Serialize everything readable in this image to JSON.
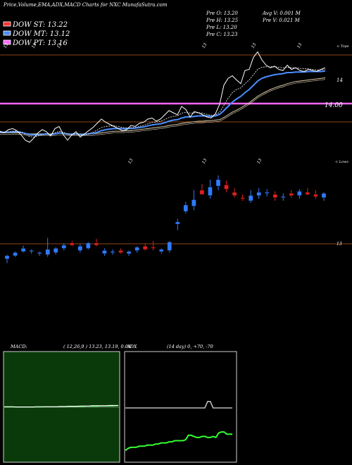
{
  "header": {
    "title": "Price,Volume,EMA,ADX,MACD Charts for NXC MunafaSutra.com",
    "dow_st": "DOW ST: 13.22",
    "dow_mt": "DOW MT: 13.12",
    "dow_pt": "DOW PT: 13.16",
    "prev_o": "Pre   O: 13.20",
    "prev_h": "Pre   H: 13.25",
    "prev_l": "Pre   L: 13.20",
    "prev_c": "Pre   C: 13.23",
    "avg_v": "Avg V: 0.001 M",
    "pre_v": "Pre   V: 0.021 M"
  },
  "colors": {
    "st": "#ff3333",
    "mt": "#4a8dff",
    "pt": "#ff66ff",
    "up": "#2f7bff",
    "down": "#e02020",
    "grid": "#8b4513",
    "macd_bg": "#0a3a0a",
    "adx_line": "#33ff33"
  },
  "chart_data": [
    {
      "type": "line",
      "name": "price-ema",
      "corner_label": "< Tops",
      "labels": {
        "level_14": "14",
        "level_1400": "14.00"
      },
      "top_tick_labels": [
        "13",
        "13",
        "13",
        "13",
        "13",
        "13"
      ],
      "ylim": [
        12.6,
        14.6
      ],
      "close": [
        13.05,
        13.02,
        13.08,
        13.1,
        13.06,
        12.98,
        12.88,
        12.84,
        12.92,
        13.02,
        13.08,
        13.04,
        12.96,
        13.1,
        13.14,
        12.98,
        12.88,
        12.98,
        13.04,
        12.94,
        13.0,
        13.06,
        13.12,
        13.2,
        13.28,
        13.22,
        13.18,
        13.14,
        13.1,
        13.06,
        13.08,
        13.16,
        13.14,
        13.2,
        13.22,
        13.28,
        13.3,
        13.24,
        13.28,
        13.36,
        13.44,
        13.4,
        13.36,
        13.52,
        13.46,
        13.32,
        13.42,
        13.4,
        13.36,
        13.32,
        13.3,
        13.38,
        13.56,
        13.92,
        14.05,
        14.1,
        14.02,
        13.95,
        14.2,
        14.22,
        14.45,
        14.55,
        14.4,
        14.3,
        14.25,
        14.28,
        14.22,
        14.2,
        14.3,
        14.22,
        14.25,
        14.2,
        14.18,
        14.22,
        14.2,
        14.18,
        14.22,
        14.25
      ],
      "ema_short": [
        13.04,
        13.03,
        13.04,
        13.05,
        13.05,
        13.03,
        12.99,
        12.95,
        12.94,
        12.96,
        12.99,
        13.0,
        12.99,
        13.02,
        13.05,
        13.03,
        12.99,
        12.99,
        13.0,
        12.98,
        12.98,
        13.0,
        13.03,
        13.07,
        13.12,
        13.14,
        13.15,
        13.15,
        13.14,
        13.12,
        13.11,
        13.12,
        13.12,
        13.14,
        13.16,
        13.19,
        13.22,
        13.22,
        13.24,
        13.27,
        13.31,
        13.33,
        13.34,
        13.39,
        13.41,
        13.39,
        13.4,
        13.4,
        13.39,
        13.37,
        13.35,
        13.36,
        13.41,
        13.54,
        13.67,
        13.78,
        13.84,
        13.87,
        13.95,
        14.02,
        14.12,
        14.22,
        14.26,
        14.27,
        14.27,
        14.27,
        14.26,
        14.25,
        14.26,
        14.25,
        14.25,
        14.24,
        14.23,
        14.23,
        14.22,
        14.21,
        14.21,
        14.22
      ],
      "ema_mid": [
        13.03,
        13.03,
        13.03,
        13.04,
        13.04,
        13.03,
        13.01,
        12.99,
        12.98,
        12.98,
        12.99,
        13.0,
        12.99,
        13.0,
        13.02,
        13.01,
        13.0,
        12.99,
        13.0,
        12.99,
        12.99,
        13.0,
        13.01,
        13.03,
        13.06,
        13.08,
        13.09,
        13.1,
        13.1,
        13.1,
        13.1,
        13.1,
        13.11,
        13.12,
        13.13,
        13.15,
        13.17,
        13.18,
        13.19,
        13.21,
        13.24,
        13.26,
        13.27,
        13.3,
        13.32,
        13.32,
        13.33,
        13.34,
        13.34,
        13.34,
        13.33,
        13.34,
        13.37,
        13.44,
        13.52,
        13.6,
        13.66,
        13.71,
        13.78,
        13.84,
        13.92,
        14.0,
        14.05,
        14.08,
        14.1,
        14.12,
        14.13,
        14.14,
        14.16,
        14.16,
        14.17,
        14.17,
        14.17,
        14.18,
        14.18,
        14.18,
        14.18,
        14.19
      ],
      "ema_long": [
        13.02,
        13.02,
        13.02,
        13.02,
        13.02,
        13.02,
        13.01,
        13.0,
        13.0,
        13.0,
        13.0,
        13.0,
        13.0,
        13.0,
        13.01,
        13.01,
        13.0,
        13.0,
        13.0,
        13.0,
        13.0,
        13.0,
        13.0,
        13.01,
        13.02,
        13.03,
        13.04,
        13.05,
        13.05,
        13.05,
        13.06,
        13.06,
        13.07,
        13.08,
        13.09,
        13.1,
        13.11,
        13.12,
        13.13,
        13.14,
        13.16,
        13.17,
        13.18,
        13.2,
        13.21,
        13.22,
        13.23,
        13.24,
        13.24,
        13.25,
        13.25,
        13.26,
        13.27,
        13.31,
        13.36,
        13.41,
        13.45,
        13.49,
        13.54,
        13.59,
        13.65,
        13.71,
        13.76,
        13.8,
        13.84,
        13.87,
        13.9,
        13.92,
        13.95,
        13.97,
        13.99,
        14.0,
        14.01,
        14.02,
        14.03,
        14.04,
        14.05,
        14.06
      ]
    },
    {
      "type": "candlestick",
      "name": "price-candles",
      "corner_label": "< Lows",
      "top_tick_labels": [
        "13",
        "13",
        "13"
      ],
      "right_label": "13",
      "ylim": [
        12.6,
        14.6
      ],
      "candles": [
        {
          "o": 12.7,
          "h": 12.78,
          "l": 12.62,
          "c": 12.76,
          "up": true
        },
        {
          "o": 12.76,
          "h": 12.84,
          "l": 12.74,
          "c": 12.82,
          "up": true
        },
        {
          "o": 12.84,
          "h": 12.95,
          "l": 12.82,
          "c": 12.9,
          "up": true
        },
        {
          "o": 12.86,
          "h": 12.88,
          "l": 12.8,
          "c": 12.84,
          "up": true
        },
        {
          "o": 12.8,
          "h": 12.84,
          "l": 12.76,
          "c": 12.82,
          "up": true
        },
        {
          "o": 12.78,
          "h": 13.1,
          "l": 12.74,
          "c": 12.88,
          "up": true
        },
        {
          "o": 12.82,
          "h": 12.92,
          "l": 12.78,
          "c": 12.9,
          "up": true
        },
        {
          "o": 12.9,
          "h": 13.0,
          "l": 12.86,
          "c": 12.96,
          "up": true
        },
        {
          "o": 13.0,
          "h": 13.04,
          "l": 12.94,
          "c": 12.96,
          "up": false
        },
        {
          "o": 12.86,
          "h": 12.98,
          "l": 12.82,
          "c": 12.94,
          "up": true
        },
        {
          "o": 12.9,
          "h": 13.02,
          "l": 12.88,
          "c": 13.0,
          "up": true
        },
        {
          "o": 13.0,
          "h": 13.08,
          "l": 12.94,
          "c": 12.96,
          "up": false
        },
        {
          "o": 12.8,
          "h": 12.9,
          "l": 12.76,
          "c": 12.86,
          "up": true
        },
        {
          "o": 12.82,
          "h": 12.88,
          "l": 12.78,
          "c": 12.84,
          "up": true
        },
        {
          "o": 12.86,
          "h": 12.9,
          "l": 12.8,
          "c": 12.82,
          "up": false
        },
        {
          "o": 12.8,
          "h": 12.86,
          "l": 12.76,
          "c": 12.84,
          "up": true
        },
        {
          "o": 12.86,
          "h": 12.94,
          "l": 12.82,
          "c": 12.92,
          "up": true
        },
        {
          "o": 12.94,
          "h": 12.98,
          "l": 12.86,
          "c": 12.88,
          "up": false
        },
        {
          "o": 12.9,
          "h": 13.04,
          "l": 12.86,
          "c": 12.92,
          "up": false
        },
        {
          "o": 12.84,
          "h": 12.9,
          "l": 12.8,
          "c": 12.88,
          "up": true
        },
        {
          "o": 12.86,
          "h": 13.04,
          "l": 12.82,
          "c": 13.02,
          "up": true
        },
        {
          "o": 13.36,
          "h": 13.46,
          "l": 13.24,
          "c": 13.4,
          "up": true
        },
        {
          "o": 13.6,
          "h": 13.78,
          "l": 13.56,
          "c": 13.72,
          "up": true
        },
        {
          "o": 13.7,
          "h": 14.0,
          "l": 13.62,
          "c": 13.82,
          "up": true
        },
        {
          "o": 14.0,
          "h": 14.12,
          "l": 13.94,
          "c": 13.92,
          "up": false
        },
        {
          "o": 13.9,
          "h": 14.2,
          "l": 13.84,
          "c": 14.06,
          "up": true
        },
        {
          "o": 14.08,
          "h": 14.28,
          "l": 14.0,
          "c": 14.2,
          "up": true
        },
        {
          "o": 14.1,
          "h": 14.18,
          "l": 13.96,
          "c": 14.02,
          "up": false
        },
        {
          "o": 13.96,
          "h": 14.04,
          "l": 13.86,
          "c": 13.9,
          "up": false
        },
        {
          "o": 13.86,
          "h": 13.92,
          "l": 13.8,
          "c": 13.84,
          "up": false
        },
        {
          "o": 13.8,
          "h": 14.0,
          "l": 13.76,
          "c": 13.9,
          "up": true
        },
        {
          "o": 13.9,
          "h": 14.04,
          "l": 13.84,
          "c": 13.96,
          "up": true
        },
        {
          "o": 13.94,
          "h": 14.02,
          "l": 13.88,
          "c": 13.96,
          "up": true
        },
        {
          "o": 13.92,
          "h": 13.98,
          "l": 13.8,
          "c": 13.86,
          "up": false
        },
        {
          "o": 13.86,
          "h": 13.94,
          "l": 13.8,
          "c": 13.88,
          "up": true
        },
        {
          "o": 13.94,
          "h": 14.0,
          "l": 13.86,
          "c": 13.9,
          "up": false
        },
        {
          "o": 13.9,
          "h": 14.02,
          "l": 13.84,
          "c": 13.98,
          "up": true
        },
        {
          "o": 13.96,
          "h": 14.04,
          "l": 13.9,
          "c": 13.92,
          "up": false
        },
        {
          "o": 13.92,
          "h": 14.0,
          "l": 13.84,
          "c": 13.88,
          "up": false
        },
        {
          "o": 13.86,
          "h": 13.96,
          "l": 13.8,
          "c": 13.94,
          "up": true
        }
      ]
    },
    {
      "type": "line",
      "name": "macd",
      "label": "MACD:",
      "params": "( 12,26,9 ) 13.23,  13.19,  0.04",
      "ylim": [
        -1,
        1
      ],
      "macd": [
        0.02,
        0.02,
        0.02,
        0.02,
        0.01,
        0.01,
        0.01,
        0.01,
        0.01,
        0.01,
        0.01,
        0.02,
        0.02,
        0.02,
        0.02,
        0.02,
        0.02,
        0.02,
        0.02,
        0.03,
        0.03,
        0.03,
        0.04,
        0.04,
        0.04,
        0.04,
        0.05,
        0.05,
        0.05,
        0.05,
        0.06,
        0.06,
        0.06,
        0.06,
        0.06,
        0.06,
        0.07,
        0.07,
        0.07,
        0.07
      ],
      "signal": [
        0.01,
        0.01,
        0.01,
        0.01,
        0.01,
        0.01,
        0.01,
        0.01,
        0.01,
        0.01,
        0.01,
        0.01,
        0.01,
        0.01,
        0.02,
        0.02,
        0.02,
        0.02,
        0.02,
        0.02,
        0.02,
        0.02,
        0.03,
        0.03,
        0.03,
        0.03,
        0.03,
        0.03,
        0.04,
        0.04,
        0.04,
        0.04,
        0.04,
        0.05,
        0.05,
        0.05,
        0.05,
        0.05,
        0.06,
        0.06
      ]
    },
    {
      "type": "line",
      "name": "adx",
      "label": "ADX",
      "params": "(14  day) 0,  +70,  -70",
      "ylim": [
        0,
        100
      ],
      "adx": [
        10,
        12,
        13,
        13,
        13,
        14,
        14,
        14,
        15,
        15,
        15,
        16,
        16,
        17,
        17,
        17,
        18,
        18,
        19,
        19,
        19,
        19,
        20,
        24,
        24,
        23,
        22,
        22,
        23,
        23,
        22,
        22,
        23,
        22,
        26,
        27,
        27,
        25,
        25,
        25
      ],
      "di_line": [
        49,
        49,
        49,
        49,
        49,
        49,
        49,
        49,
        49,
        49,
        49,
        49,
        49,
        49,
        49,
        49,
        49,
        49,
        49,
        49,
        49,
        49,
        49,
        49,
        49,
        49,
        49,
        49,
        49,
        49,
        55,
        55,
        49,
        49,
        49,
        49,
        49,
        49,
        49,
        49
      ]
    }
  ]
}
